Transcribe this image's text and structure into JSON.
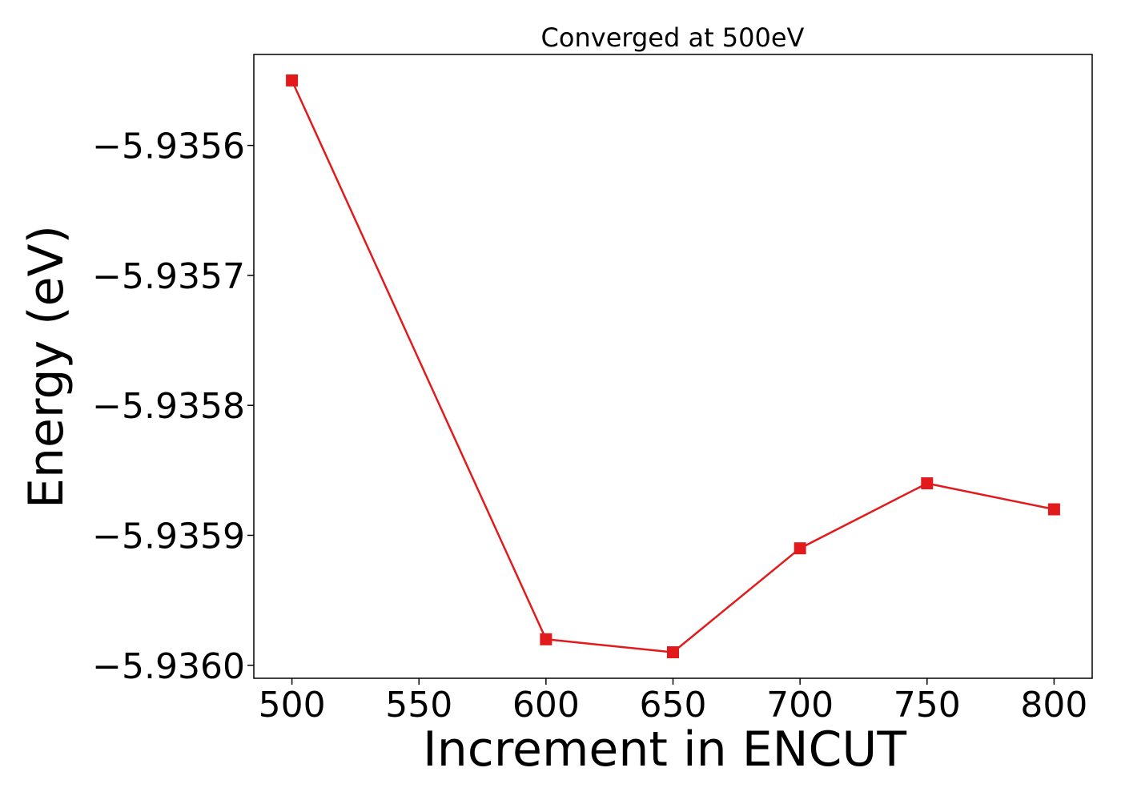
{
  "chart_data": {
    "type": "line",
    "title": "Converged at 500eV",
    "xlabel": "Increment in ENCUT",
    "ylabel": "Energy (eV)",
    "x": [
      500,
      600,
      650,
      700,
      750,
      800
    ],
    "series": [
      {
        "color": "#e31a1c",
        "marker": "square",
        "values": [
          -5.93555,
          -5.93598,
          -5.93599,
          -5.93591,
          -5.93586,
          -5.93588
        ]
      }
    ],
    "xlim": [
      485,
      815
    ],
    "ylim": [
      -5.93601,
      -5.93553
    ],
    "x_ticks": [
      500,
      550,
      600,
      650,
      700,
      750,
      800
    ],
    "x_tick_labels": [
      "500",
      "550",
      "600",
      "650",
      "700",
      "750",
      "800"
    ],
    "y_ticks": [
      -5.9356,
      -5.9357,
      -5.9358,
      -5.9359,
      -5.936
    ],
    "y_tick_labels": [
      "−5.9356",
      "−5.9357",
      "−5.9358",
      "−5.9359",
      "−5.9360"
    ],
    "grid": false,
    "legend": "none"
  }
}
